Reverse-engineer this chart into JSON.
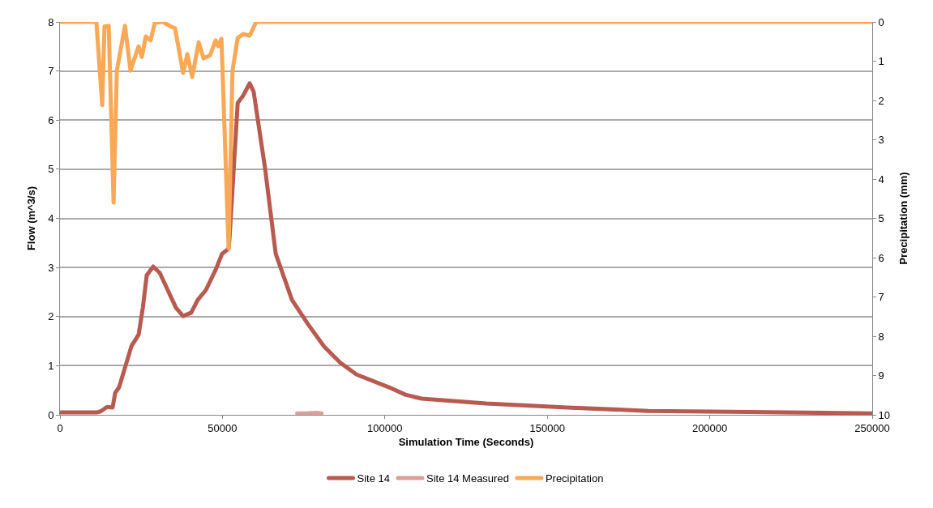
{
  "chart_data": {
    "type": "line",
    "xlabel": "Simulation Time (Seconds)",
    "ylabel": "Flow (m^3/s)",
    "y2label": "Precipitation (mm)",
    "xlim": [
      0,
      250000
    ],
    "xticks": [
      0,
      50000,
      100000,
      150000,
      200000,
      250000
    ],
    "ylim": [
      0,
      8
    ],
    "yticks": [
      0,
      1,
      2,
      3,
      4,
      5,
      6,
      7,
      8
    ],
    "y2lim": [
      10,
      0
    ],
    "y2ticks": [
      0,
      1,
      2,
      3,
      4,
      5,
      6,
      7,
      8,
      9,
      10
    ],
    "grid": "y",
    "legend": "bottom",
    "marker": "none",
    "line_style": "solid",
    "series": [
      {
        "name": "Site 14",
        "color": "#b85a50",
        "x": [
          0,
          11500,
          12500,
          14500,
          16200,
          17000,
          18200,
          22000,
          24200,
          25500,
          26700,
          28700,
          30700,
          35700,
          37900,
          40400,
          42400,
          44900,
          47900,
          49900,
          51900,
          52200,
          54700,
          56400,
          58400,
          59600,
          63100,
          66400,
          71400,
          76300,
          81300,
          86300,
          91300,
          101300,
          106300,
          111300,
          131200,
          156200,
          181100,
          206100,
          250000
        ],
        "values": [
          0.05,
          0.05,
          0.07,
          0.16,
          0.15,
          0.45,
          0.56,
          1.4,
          1.63,
          2.18,
          2.84,
          3.02,
          2.89,
          2.18,
          2.01,
          2.08,
          2.34,
          2.54,
          2.95,
          3.28,
          3.38,
          3.61,
          6.35,
          6.5,
          6.75,
          6.58,
          5.03,
          3.28,
          2.34,
          1.85,
          1.39,
          1.06,
          0.82,
          0.56,
          0.41,
          0.33,
          0.23,
          0.15,
          0.08,
          0.06,
          0.03
        ]
      },
      {
        "name": "Site 14 Measured",
        "color": "#d9a09a",
        "x": [
          73000,
          76000,
          79000,
          80500
        ],
        "values": [
          0.03,
          0.03,
          0.04,
          0.03
        ]
      },
      {
        "name": "Precipitation",
        "color": "#f9a955",
        "axis": "y2",
        "x": [
          0,
          11200,
          13000,
          13700,
          15000,
          16500,
          17500,
          20000,
          21700,
          24200,
          25200,
          26400,
          27900,
          29200,
          31700,
          34200,
          35400,
          37900,
          39200,
          40700,
          42700,
          44200,
          46200,
          47900,
          48700,
          49700,
          51900,
          53100,
          54700,
          56400,
          58400,
          60400,
          250000
        ],
        "values": [
          0,
          0,
          2.12,
          0.12,
          0.1,
          4.6,
          1.24,
          0.1,
          1.24,
          0.62,
          0.89,
          0.37,
          0.47,
          0.02,
          0,
          0.12,
          0.16,
          1.3,
          0.82,
          1.4,
          0.52,
          0.93,
          0.85,
          0.47,
          0.62,
          0.43,
          5.77,
          1.24,
          0.41,
          0.31,
          0.35,
          0,
          0
        ]
      }
    ]
  }
}
